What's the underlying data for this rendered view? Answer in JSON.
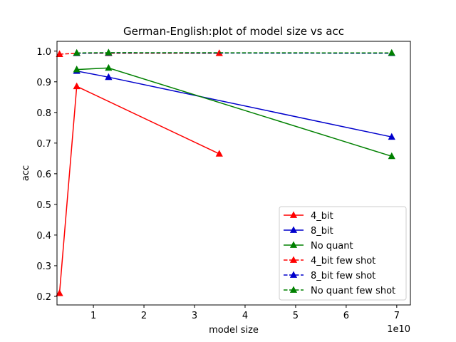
{
  "chart_data": {
    "type": "line",
    "title": "German-English:plot of model size vs acc",
    "xlabel": "model size",
    "ylabel": "acc",
    "x_offset_label": "1e10",
    "x_scale": 10000000000,
    "xlim": [
      2800000000,
      72700000000
    ],
    "ylim": [
      0.172,
      1.032
    ],
    "xticks": [
      10000000000,
      20000000000,
      30000000000,
      40000000000,
      50000000000,
      60000000000,
      70000000000
    ],
    "xtick_labels": [
      "1",
      "2",
      "3",
      "4",
      "5",
      "6",
      "7"
    ],
    "yticks": [
      0.2,
      0.3,
      0.4,
      0.5,
      0.6,
      0.7,
      0.8,
      0.9,
      1.0
    ],
    "ytick_labels": [
      "0.2",
      "0.3",
      "0.4",
      "0.5",
      "0.6",
      "0.7",
      "0.8",
      "0.9",
      "1.0"
    ],
    "grid": false,
    "legend_position": "lower-right",
    "series": [
      {
        "name": "4_bit",
        "color": "#ff0000",
        "dashed": false,
        "x": [
          3300000000,
          6700000000,
          34900000000
        ],
        "y": [
          0.21,
          0.885,
          0.665
        ]
      },
      {
        "name": "8_bit",
        "color": "#0000cc",
        "dashed": false,
        "x": [
          6700000000,
          13000000000,
          69000000000
        ],
        "y": [
          0.935,
          0.915,
          0.72
        ]
      },
      {
        "name": "No quant",
        "color": "#008000",
        "dashed": false,
        "x": [
          6700000000,
          13000000000,
          69000000000
        ],
        "y": [
          0.94,
          0.945,
          0.657
        ]
      },
      {
        "name": "4_bit few shot",
        "color": "#ff0000",
        "dashed": true,
        "x": [
          3300000000,
          6700000000,
          13000000000,
          34900000000
        ],
        "y": [
          0.99,
          0.993,
          0.993,
          0.993
        ]
      },
      {
        "name": "8_bit few shot",
        "color": "#0000cc",
        "dashed": true,
        "x": [
          6700000000,
          13000000000,
          69000000000
        ],
        "y": [
          0.993,
          0.994,
          0.993
        ]
      },
      {
        "name": "No quant few shot",
        "color": "#008000",
        "dashed": true,
        "x": [
          6700000000,
          13000000000,
          69000000000
        ],
        "y": [
          0.994,
          0.995,
          0.994
        ]
      }
    ]
  }
}
